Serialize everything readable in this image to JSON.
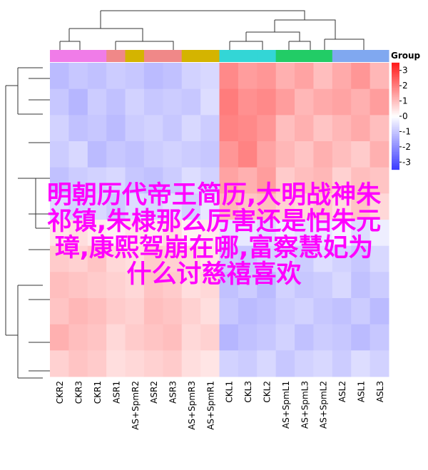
{
  "chart_data": {
    "type": "heatmap",
    "title_lines": [
      "明朝历代帝王简历,大明战神朱",
      "祁镇,朱棣那么厉害还是怕朱元",
      "璋,康熙驾崩在哪,富察慧妃为",
      "什么讨慈禧喜欢"
    ],
    "categories": [
      "CKR2",
      "CKR3",
      "CKR1",
      "ASR1",
      "AS+SpmR2",
      "ASR2",
      "ASR3",
      "AS+SpmR3",
      "AS+SpmR1",
      "CKL1",
      "CKL3",
      "CKL2",
      "AS+SpmL1",
      "AS+SpmL3",
      "AS+SpmL2",
      "ASL2",
      "ASL1",
      "ASL3"
    ],
    "group_title": "Group",
    "group_colors": [
      "#f07ce8",
      "#f07ce8",
      "#f07ce8",
      "#f08888",
      "#d4b400",
      "#f08888",
      "#f08888",
      "#d4b400",
      "#d4b400",
      "#33d6d6",
      "#33d6d6",
      "#33d6d6",
      "#22cc66",
      "#22cc66",
      "#22cc66",
      "#80a8f0",
      "#80a8f0",
      "#80a8f0"
    ],
    "values": [
      [
        -1.2,
        -1.0,
        -1.1,
        -0.9,
        -1.0,
        -1.2,
        -1.1,
        -0.8,
        -0.7,
        1.8,
        1.5,
        1.6,
        1.2,
        1.4,
        1.0,
        1.3,
        1.6,
        1.1
      ],
      [
        -1.0,
        -1.3,
        -0.9,
        -1.1,
        -0.8,
        -1.0,
        -0.9,
        -1.0,
        -0.6,
        2.0,
        1.7,
        1.8,
        1.5,
        1.1,
        1.3,
        1.4,
        1.2,
        1.5
      ],
      [
        -0.8,
        -1.1,
        -1.0,
        -1.2,
        -0.9,
        -0.8,
        -1.0,
        -0.7,
        -0.9,
        1.9,
        1.8,
        1.6,
        1.0,
        1.2,
        0.9,
        1.1,
        1.3,
        1.0
      ],
      [
        -0.9,
        -0.7,
        -1.2,
        -1.0,
        -1.1,
        -0.9,
        -0.8,
        -0.9,
        -1.0,
        1.6,
        1.9,
        1.4,
        1.1,
        0.9,
        1.2,
        1.0,
        0.8,
        1.2
      ],
      [
        -1.1,
        -0.9,
        -0.8,
        -0.7,
        -1.0,
        -1.1,
        -0.9,
        -0.6,
        -0.8,
        1.4,
        1.2,
        1.5,
        0.8,
        1.0,
        1.1,
        0.7,
        1.0,
        0.9
      ],
      [
        -0.6,
        -0.8,
        -0.7,
        -0.9,
        -0.6,
        -0.7,
        -0.5,
        -0.8,
        -0.4,
        1.1,
        0.9,
        1.0,
        0.7,
        0.6,
        0.8,
        0.5,
        0.9,
        0.6
      ],
      [
        0.4,
        0.5,
        0.3,
        0.2,
        0.4,
        0.3,
        0.5,
        0.2,
        0.3,
        -0.5,
        -0.4,
        -0.6,
        -0.3,
        -0.5,
        -0.4,
        -0.2,
        -0.6,
        -0.3
      ],
      [
        0.8,
        0.7,
        0.9,
        0.6,
        0.5,
        0.8,
        0.7,
        0.6,
        0.4,
        -0.9,
        -1.0,
        -0.8,
        -0.7,
        -0.9,
        -0.6,
        -0.8,
        -1.0,
        -0.7
      ],
      [
        1.0,
        0.9,
        0.8,
        0.7,
        0.6,
        0.9,
        0.8,
        0.5,
        0.6,
        -1.1,
        -0.9,
        -1.2,
        -0.8,
        -1.0,
        -0.9,
        -0.7,
        -1.1,
        -0.9
      ],
      [
        0.9,
        1.1,
        1.0,
        0.8,
        0.7,
        1.0,
        0.9,
        0.7,
        0.5,
        -1.0,
        -1.2,
        -1.1,
        -0.9,
        -0.8,
        -1.0,
        -1.1,
        -0.9,
        -1.2
      ],
      [
        1.2,
        1.0,
        0.9,
        0.6,
        0.8,
        0.9,
        1.0,
        0.6,
        0.7,
        -1.3,
        -1.1,
        -1.0,
        -0.8,
        -1.1,
        -0.9,
        -1.0,
        -1.2,
        -1.0
      ],
      [
        0.7,
        0.9,
        0.8,
        0.5,
        0.6,
        0.7,
        0.8,
        0.5,
        0.4,
        -0.8,
        -0.9,
        -0.7,
        -1.0,
        -0.8,
        -0.7,
        -0.9,
        -0.6,
        -0.8
      ]
    ],
    "zlim": [
      -3.5,
      3.5
    ],
    "zticks": [
      3,
      2,
      1,
      0,
      -1,
      -2,
      -3
    ],
    "colors": [
      "#3a3aff",
      "#ffffff",
      "#ff1a1a"
    ]
  }
}
